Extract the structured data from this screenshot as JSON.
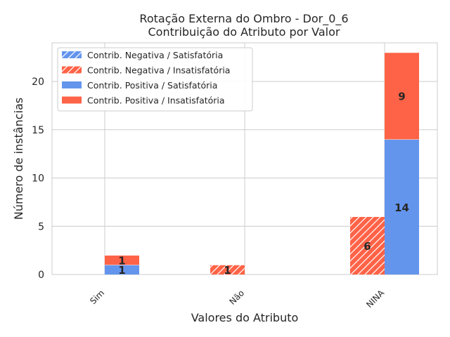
{
  "chart_data": {
    "type": "bar",
    "title": "Rotação Externa do Ombro - Dor_0_6",
    "subtitle": "Contribuição do Atributo por Valor",
    "xlabel": "Valores do Atributo",
    "ylabel": "Número de instâncias",
    "categories": [
      "Sim",
      "Não",
      "NINA"
    ],
    "ylim": [
      0,
      24
    ],
    "yticks": [
      0,
      5,
      10,
      15,
      20
    ],
    "grid": true,
    "legend_position": "top-left",
    "groups": [
      {
        "name": "Contrib. Negativa",
        "series": [
          {
            "name": "Contrib. Negativa / Satisfatória",
            "values": [
              0,
              0,
              0
            ],
            "color": "#6495ED",
            "hatch": true
          },
          {
            "name": "Contrib. Negativa / Insatisfatória",
            "values": [
              0,
              1,
              6
            ],
            "color": "#FF6347",
            "hatch": true
          }
        ]
      },
      {
        "name": "Contrib. Positiva",
        "series": [
          {
            "name": "Contrib. Positiva / Satisfatória",
            "values": [
              1,
              0,
              14
            ],
            "color": "#6495ED",
            "hatch": false
          },
          {
            "name": "Contrib. Positiva / Insatisfatória",
            "values": [
              1,
              0,
              9
            ],
            "color": "#FF6347",
            "hatch": false
          }
        ]
      }
    ]
  }
}
